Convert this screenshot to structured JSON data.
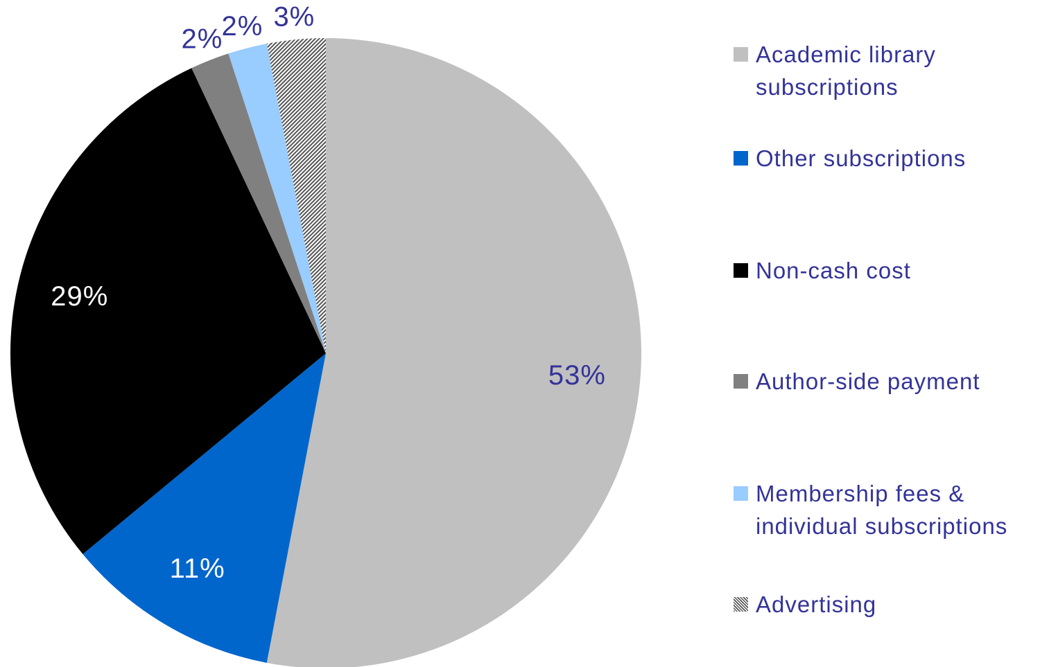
{
  "chart_data": {
    "type": "pie",
    "categories": [
      "Academic library subscriptions",
      "Other subscriptions",
      "Non-cash cost",
      "Author-side payment",
      "Membership fees & individual subscriptions",
      "Advertising"
    ],
    "values": [
      53,
      11,
      29,
      2,
      2,
      3
    ],
    "value_labels": [
      "53%",
      "11%",
      "29%",
      "2%",
      "2%",
      "3%"
    ],
    "colors": [
      "#c0c0c0",
      "#0066cc",
      "#000000",
      "#808080",
      "#99ccff",
      "#666666"
    ],
    "hatched": [
      false,
      false,
      false,
      false,
      false,
      true
    ],
    "label_colors": [
      "#333399",
      "#ffffff",
      "#ffffff",
      "#333399",
      "#333399",
      "#333399"
    ],
    "legend": "right"
  }
}
